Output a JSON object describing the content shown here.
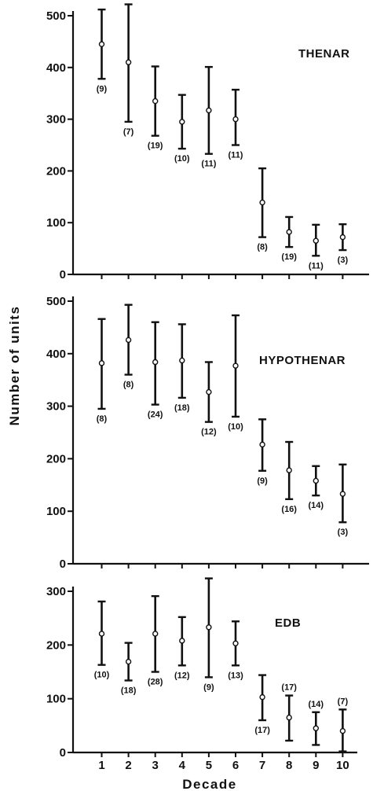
{
  "chart_data": [
    {
      "type": "scatter",
      "panel_label": "THENAR",
      "x": [
        1,
        2,
        3,
        4,
        5,
        6,
        7,
        8,
        9,
        10
      ],
      "mean": [
        445,
        410,
        335,
        295,
        317,
        300,
        139,
        82,
        65,
        72
      ],
      "upper": [
        512,
        522,
        402,
        347,
        401,
        357,
        205,
        111,
        96,
        97
      ],
      "lower": [
        378,
        295,
        268,
        243,
        233,
        250,
        72,
        53,
        36,
        47
      ],
      "n_labels": [
        "(9)",
        "(7)",
        "(19)",
        "(10)",
        "(11)",
        "(11)",
        "(8)",
        "(19)",
        "(11)",
        "(3)"
      ],
      "ylim": [
        0,
        500
      ],
      "yticks": [
        "0",
        "100",
        "200",
        "300",
        "400",
        "500"
      ]
    },
    {
      "type": "scatter",
      "panel_label": "HYPOTHENAR",
      "x": [
        1,
        2,
        3,
        4,
        5,
        6,
        7,
        8,
        9,
        10
      ],
      "mean": [
        382,
        426,
        384,
        387,
        327,
        377,
        227,
        178,
        158,
        133
      ],
      "upper": [
        466,
        493,
        460,
        456,
        384,
        473,
        275,
        232,
        186,
        189
      ],
      "lower": [
        295,
        360,
        303,
        316,
        270,
        280,
        177,
        123,
        130,
        79
      ],
      "n_labels": [
        "(8)",
        "(8)",
        "(24)",
        "(18)",
        "(12)",
        "(10)",
        "(9)",
        "(16)",
        "(14)",
        "(3)"
      ],
      "ylim": [
        0,
        500
      ],
      "yticks": [
        "0",
        "100",
        "200",
        "300",
        "400",
        "500"
      ]
    },
    {
      "type": "scatter",
      "panel_label": "EDB",
      "x": [
        1,
        2,
        3,
        4,
        5,
        6,
        7,
        8,
        9,
        10
      ],
      "mean": [
        221,
        169,
        221,
        208,
        233,
        203,
        103,
        65,
        45,
        40
      ],
      "upper": [
        281,
        204,
        291,
        252,
        324,
        244,
        144,
        106,
        75,
        80
      ],
      "lower": [
        163,
        134,
        150,
        162,
        140,
        162,
        60,
        22,
        14,
        2
      ],
      "n_labels": [
        "(10)",
        "(18)",
        "(28)",
        "(12)",
        "(9)",
        "(13)",
        "(17)",
        "(17)",
        "(14)",
        "(7)"
      ],
      "n_label_positions": [
        "below",
        "below",
        "below",
        "below",
        "below",
        "below",
        "below",
        "above",
        "above",
        "above"
      ],
      "ylim": [
        0,
        300
      ],
      "yticks": [
        "0",
        "100",
        "200",
        "300"
      ]
    }
  ],
  "axes": {
    "ylabel": "Number of units",
    "xlabel": "Decade",
    "xticks": [
      "1",
      "2",
      "3",
      "4",
      "5",
      "6",
      "7",
      "8",
      "9",
      "10"
    ]
  }
}
